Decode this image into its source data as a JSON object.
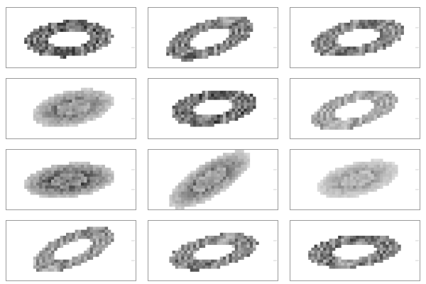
{
  "figure": {
    "rows": 4,
    "cols": 3,
    "background": "#ffffff",
    "frame_color": "#9a9a9a",
    "tick_color": "#c8c8c8",
    "pixel_dark": "#111111",
    "pixel_light": "#f4f4f4"
  },
  "panels": [
    {
      "name": "panel-1",
      "shape": "ring",
      "tilt_deg": -4,
      "darkness": 0.85
    },
    {
      "name": "panel-2",
      "shape": "ring",
      "tilt_deg": -18,
      "darkness": 0.75
    },
    {
      "name": "panel-3",
      "shape": "ring",
      "tilt_deg": -10,
      "darkness": 0.7
    },
    {
      "name": "panel-4",
      "shape": "blob",
      "tilt_deg": -12,
      "darkness": 0.7
    },
    {
      "name": "panel-5",
      "shape": "ring",
      "tilt_deg": -8,
      "darkness": 0.85
    },
    {
      "name": "panel-6",
      "shape": "ring",
      "tilt_deg": -15,
      "darkness": 0.5
    },
    {
      "name": "panel-7",
      "shape": "blob",
      "tilt_deg": -6,
      "darkness": 0.85
    },
    {
      "name": "panel-8",
      "shape": "blob",
      "tilt_deg": -32,
      "darkness": 0.7
    },
    {
      "name": "panel-9",
      "shape": "blob",
      "tilt_deg": -14,
      "darkness": 0.5
    },
    {
      "name": "panel-10",
      "shape": "ring",
      "tilt_deg": -22,
      "darkness": 0.6
    },
    {
      "name": "panel-11",
      "shape": "ring",
      "tilt_deg": -12,
      "darkness": 0.7
    },
    {
      "name": "panel-12",
      "shape": "ring",
      "tilt_deg": -6,
      "darkness": 0.75
    }
  ]
}
